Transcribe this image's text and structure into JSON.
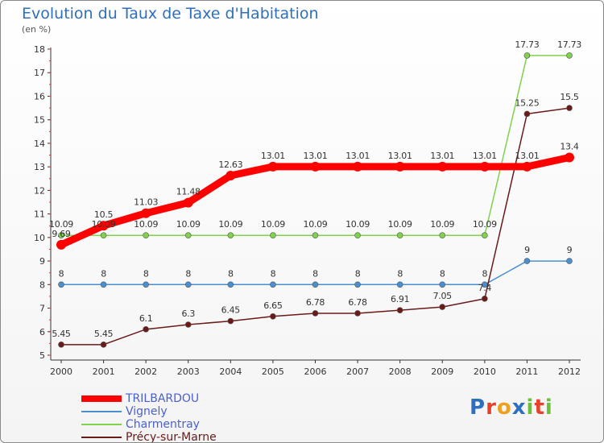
{
  "header": {
    "title": "Evolution du Taux de Taxe d'Habitation",
    "subtitle": "(en %)"
  },
  "logo": {
    "text": "Proxiti",
    "letters": [
      "P",
      "r",
      "o",
      "x",
      "i",
      "t",
      "i"
    ],
    "colors": [
      "#2f6fbf",
      "#e8412a",
      "#f0a020",
      "#2f6fbf",
      "#6cbf3a",
      "#e8412a",
      "#6cbf3a"
    ]
  },
  "chart_data": {
    "type": "line",
    "title": "Evolution du Taux de Taxe d'Habitation",
    "ylabel": "(en %)",
    "xlabel": "",
    "x": [
      "2000",
      "2001",
      "2002",
      "2003",
      "2004",
      "2005",
      "2006",
      "2007",
      "2008",
      "2009",
      "2010",
      "2011",
      "2012"
    ],
    "ylim": [
      5,
      18
    ],
    "yticks": [
      "5",
      "6",
      "7",
      "8",
      "9",
      "10",
      "11",
      "12",
      "13",
      "14",
      "15",
      "16",
      "17",
      "18"
    ],
    "grid": false,
    "legend_position": "bottom-left",
    "series": [
      {
        "name": "TRILBARDOU",
        "color": "#ff0000",
        "values": [
          9.69,
          10.5,
          11.03,
          11.48,
          12.63,
          13.01,
          13.01,
          13.01,
          13.01,
          13.01,
          13.01,
          13.01,
          13.4
        ],
        "labels": [
          "9.69",
          "10.5",
          "11.03",
          "11.48",
          "12.63",
          "13.01",
          "13.01",
          "13.01",
          "13.01",
          "13.01",
          "13.01",
          "13.01",
          "13.4"
        ]
      },
      {
        "name": "Vignely",
        "color": "#4a8fcf",
        "values": [
          8,
          8,
          8,
          8,
          8,
          8,
          8,
          8,
          8,
          8,
          8,
          9,
          9
        ],
        "labels": [
          "8",
          "8",
          "8",
          "8",
          "8",
          "8",
          "8",
          "8",
          "8",
          "8",
          "8",
          "9",
          "9"
        ]
      },
      {
        "name": "Charmentray",
        "color": "#7fd24a",
        "values": [
          10.09,
          10.09,
          10.09,
          10.09,
          10.09,
          10.09,
          10.09,
          10.09,
          10.09,
          10.09,
          10.09,
          17.73,
          17.73
        ],
        "labels": [
          "10.09",
          "10.09",
          "10.09",
          "10.09",
          "10.09",
          "10.09",
          "10.09",
          "10.09",
          "10.09",
          "10.09",
          "10.09",
          "17.73",
          "17.73"
        ]
      },
      {
        "name": "Précy-sur-Marne",
        "color": "#6b1a1a",
        "values": [
          5.45,
          5.45,
          6.1,
          6.3,
          6.45,
          6.65,
          6.78,
          6.78,
          6.91,
          7.05,
          7.4,
          15.25,
          15.5
        ],
        "labels": [
          "5.45",
          "5.45",
          "6.1",
          "6.3",
          "6.45",
          "6.65",
          "6.78",
          "6.78",
          "6.91",
          "7.05",
          "7.4",
          "15.25",
          "15.5"
        ]
      }
    ]
  }
}
